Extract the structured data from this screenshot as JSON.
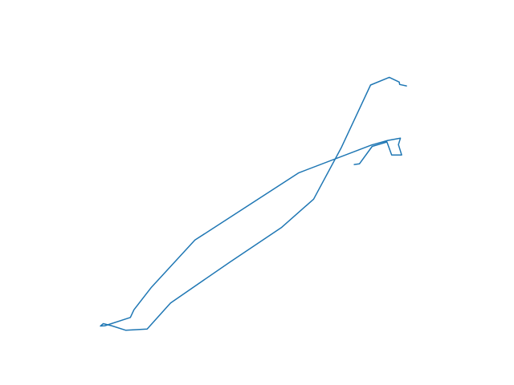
{
  "chart_data": {
    "type": "line",
    "title": "",
    "xlabel": "",
    "ylabel": "",
    "axes_visible": false,
    "grid": false,
    "legend": "none",
    "color": "#1f77b4",
    "xlim": [
      0,
      1
    ],
    "ylim": [
      0,
      1
    ],
    "series": [
      {
        "points": [
          [
            0.859,
            0.866
          ],
          [
            0.842,
            0.871
          ],
          [
            0.841,
            0.879
          ],
          [
            0.816,
            0.895
          ],
          [
            0.769,
            0.869
          ],
          [
            0.696,
            0.659
          ],
          [
            0.626,
            0.484
          ],
          [
            0.545,
            0.388
          ],
          [
            0.416,
            0.272
          ],
          [
            0.267,
            0.134
          ],
          [
            0.208,
            0.046
          ],
          [
            0.154,
            0.042
          ],
          [
            0.119,
            0.057
          ],
          [
            0.098,
            0.064
          ],
          [
            0.091,
            0.056
          ],
          [
            0.102,
            0.057
          ],
          [
            0.166,
            0.085
          ],
          [
            0.175,
            0.111
          ],
          [
            0.219,
            0.187
          ],
          [
            0.328,
            0.346
          ],
          [
            0.589,
            0.573
          ],
          [
            0.772,
            0.667
          ],
          [
            0.812,
            0.682
          ],
          [
            0.844,
            0.69
          ],
          [
            0.839,
            0.668
          ],
          [
            0.847,
            0.633
          ],
          [
            0.822,
            0.633
          ],
          [
            0.81,
            0.677
          ],
          [
            0.773,
            0.662
          ],
          [
            0.741,
            0.603
          ],
          [
            0.728,
            0.601
          ]
        ]
      }
    ]
  }
}
